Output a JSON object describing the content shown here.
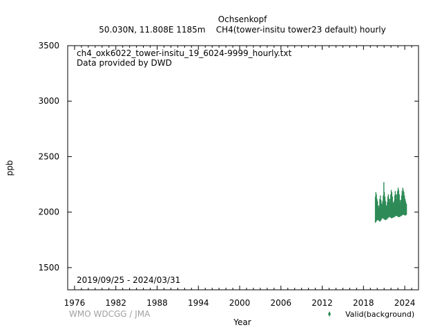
{
  "chart_data": {
    "type": "scatter",
    "title": "Ochsenkopf",
    "subtitle": "50.030N, 11.808E 1185m    CH4(tower-insitu tower23 default) hourly",
    "annotations": [
      "ch4_oxk6022_tower-insitu_19_6024-9999_hourly.txt",
      "Data provided by DWD"
    ],
    "date_range": "2019/09/25 - 2024/03/31",
    "xlabel": "Year",
    "ylabel": "ppb",
    "xlim": [
      1975,
      2026
    ],
    "ylim": [
      1300,
      3500
    ],
    "xticks": [
      1976,
      1982,
      1988,
      1994,
      2000,
      2006,
      2012,
      2018,
      2024
    ],
    "yticks": [
      1500,
      2000,
      2500,
      3000,
      3500
    ],
    "grid": false,
    "legend_position": "bottom-right",
    "series": [
      {
        "name": "Valid(background)",
        "color": "#2e8b57",
        "x": [
          2019.73,
          2019.8,
          2019.88,
          2019.96,
          2020.04,
          2020.12,
          2020.21,
          2020.29,
          2020.37,
          2020.46,
          2020.54,
          2020.62,
          2020.71,
          2020.79,
          2020.87,
          2020.96,
          2021.04,
          2021.12,
          2021.21,
          2021.29,
          2021.37,
          2021.46,
          2021.54,
          2021.62,
          2021.71,
          2021.79,
          2021.87,
          2021.96,
          2022.04,
          2022.12,
          2022.21,
          2022.29,
          2022.37,
          2022.46,
          2022.54,
          2022.62,
          2022.71,
          2022.79,
          2022.87,
          2022.96,
          2023.04,
          2023.12,
          2023.21,
          2023.29,
          2023.37,
          2023.46,
          2023.54,
          2023.62,
          2023.71,
          2023.79,
          2023.87,
          2023.96,
          2024.04,
          2024.12,
          2024.21,
          2024.25
        ],
        "low": [
          1905,
          1910,
          1920,
          1925,
          1930,
          1928,
          1925,
          1920,
          1915,
          1918,
          1925,
          1935,
          1945,
          1945,
          1940,
          1938,
          1935,
          1930,
          1928,
          1930,
          1935,
          1940,
          1945,
          1950,
          1955,
          1958,
          1955,
          1950,
          1945,
          1945,
          1948,
          1950,
          1952,
          1955,
          1958,
          1962,
          1965,
          1968,
          1965,
          1960,
          1958,
          1955,
          1955,
          1958,
          1962,
          1965,
          1968,
          1972,
          1975,
          1978,
          1975,
          1972,
          1970,
          1970,
          1975,
          1980
        ],
        "high": [
          2140,
          2180,
          2160,
          2120,
          2100,
          2060,
          2040,
          2060,
          2120,
          2150,
          2110,
          2080,
          2070,
          2100,
          2150,
          2270,
          2180,
          2140,
          2100,
          2060,
          2060,
          2090,
          2140,
          2160,
          2120,
          2090,
          2120,
          2160,
          2200,
          2180,
          2140,
          2090,
          2080,
          2100,
          2150,
          2190,
          2160,
          2120,
          2160,
          2190,
          2220,
          2200,
          2160,
          2110,
          2090,
          2110,
          2150,
          2190,
          2220,
          2200,
          2180,
          2150,
          2120,
          2100,
          2080,
          2070
        ]
      }
    ]
  }
}
